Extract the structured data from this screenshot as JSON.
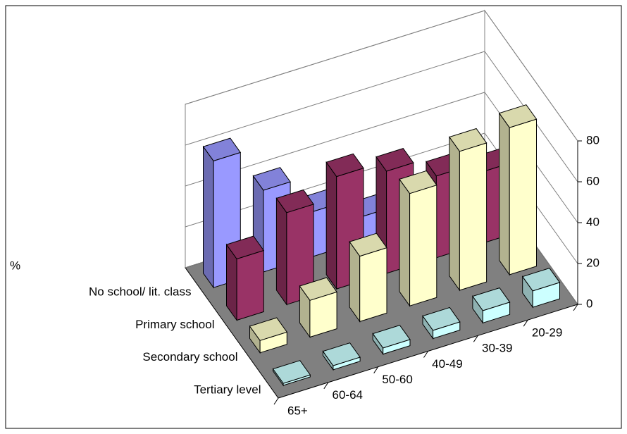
{
  "chart_data": {
    "type": "bar3d",
    "y_label": "%",
    "categories": [
      "65+",
      "60-64",
      "50-60",
      "40-49",
      "30-39",
      "20-29"
    ],
    "series": [
      {
        "name": "No school/ lit. class",
        "color": "#9999ff",
        "values": [
          62,
          40,
          22,
          12,
          0,
          0
        ]
      },
      {
        "name": "Primary school",
        "color": "#993366",
        "values": [
          30,
          45,
          55,
          50,
          40,
          35
        ]
      },
      {
        "name": "Secondary school",
        "color": "#ffffcc",
        "values": [
          6,
          18,
          32,
          55,
          68,
          72
        ]
      },
      {
        "name": "Tertiary level",
        "color": "#ccffff",
        "values": [
          1,
          2,
          3,
          4,
          6,
          8
        ]
      }
    ],
    "ylim": [
      0,
      80
    ],
    "yticks": [
      0,
      20,
      40,
      60,
      80
    ],
    "grid": true,
    "floor_color": "#808080"
  }
}
